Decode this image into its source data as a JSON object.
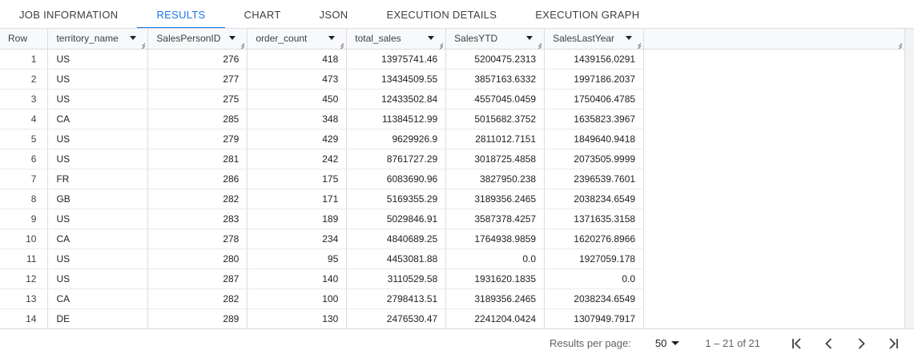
{
  "tabs": [
    {
      "label": "JOB INFORMATION",
      "active": false
    },
    {
      "label": "RESULTS",
      "active": true
    },
    {
      "label": "CHART",
      "active": false
    },
    {
      "label": "JSON",
      "active": false
    },
    {
      "label": "EXECUTION DETAILS",
      "active": false
    },
    {
      "label": "EXECUTION GRAPH",
      "active": false
    }
  ],
  "columns": {
    "row": "Row",
    "territory_name": "territory_name",
    "sales_person_id": "SalesPersonID",
    "order_count": "order_count",
    "total_sales": "total_sales",
    "sales_ytd": "SalesYTD",
    "sales_last_year": "SalesLastYear"
  },
  "rows": [
    {
      "row": "1",
      "territory": "US",
      "spid": "276",
      "orders": "418",
      "total": "13975741.46",
      "ytd": "5200475.2313",
      "last": "1439156.0291"
    },
    {
      "row": "2",
      "territory": "US",
      "spid": "277",
      "orders": "473",
      "total": "13434509.55",
      "ytd": "3857163.6332",
      "last": "1997186.2037"
    },
    {
      "row": "3",
      "territory": "US",
      "spid": "275",
      "orders": "450",
      "total": "12433502.84",
      "ytd": "4557045.0459",
      "last": "1750406.4785"
    },
    {
      "row": "4",
      "territory": "CA",
      "spid": "285",
      "orders": "348",
      "total": "11384512.99",
      "ytd": "5015682.3752",
      "last": "1635823.3967"
    },
    {
      "row": "5",
      "territory": "US",
      "spid": "279",
      "orders": "429",
      "total": "9629926.9",
      "ytd": "2811012.7151",
      "last": "1849640.9418"
    },
    {
      "row": "6",
      "territory": "US",
      "spid": "281",
      "orders": "242",
      "total": "8761727.29",
      "ytd": "3018725.4858",
      "last": "2073505.9999"
    },
    {
      "row": "7",
      "territory": "FR",
      "spid": "286",
      "orders": "175",
      "total": "6083690.96",
      "ytd": "3827950.238",
      "last": "2396539.7601"
    },
    {
      "row": "8",
      "territory": "GB",
      "spid": "282",
      "orders": "171",
      "total": "5169355.29",
      "ytd": "3189356.2465",
      "last": "2038234.6549"
    },
    {
      "row": "9",
      "territory": "US",
      "spid": "283",
      "orders": "189",
      "total": "5029846.91",
      "ytd": "3587378.4257",
      "last": "1371635.3158"
    },
    {
      "row": "10",
      "territory": "CA",
      "spid": "278",
      "orders": "234",
      "total": "4840689.25",
      "ytd": "1764938.9859",
      "last": "1620276.8966"
    },
    {
      "row": "11",
      "territory": "US",
      "spid": "280",
      "orders": "95",
      "total": "4453081.88",
      "ytd": "0.0",
      "last": "1927059.178"
    },
    {
      "row": "12",
      "territory": "US",
      "spid": "287",
      "orders": "140",
      "total": "3110529.58",
      "ytd": "1931620.1835",
      "last": "0.0"
    },
    {
      "row": "13",
      "territory": "CA",
      "spid": "282",
      "orders": "100",
      "total": "2798413.51",
      "ytd": "3189356.2465",
      "last": "2038234.6549"
    },
    {
      "row": "14",
      "territory": "DE",
      "spid": "289",
      "orders": "130",
      "total": "2476530.47",
      "ytd": "2241204.0424",
      "last": "1307949.7917"
    },
    {
      "row": "",
      "territory": "",
      "spid": "",
      "orders": "",
      "total": "",
      "ytd": "",
      "last": ""
    }
  ],
  "footer": {
    "rows_per_page_label": "Results per page:",
    "rows_per_page_value": "50",
    "range": "1 – 21 of 21"
  },
  "icons": {
    "sort": "caret-down-icon",
    "resize": "resize-grip-icon",
    "first": "first-page-icon",
    "prev": "chevron-left-icon",
    "next": "chevron-right-icon",
    "last": "last-page-icon"
  },
  "colors": {
    "accent": "#1a73e8",
    "header_bg": "#f8f9fa",
    "border": "#dadce0"
  }
}
